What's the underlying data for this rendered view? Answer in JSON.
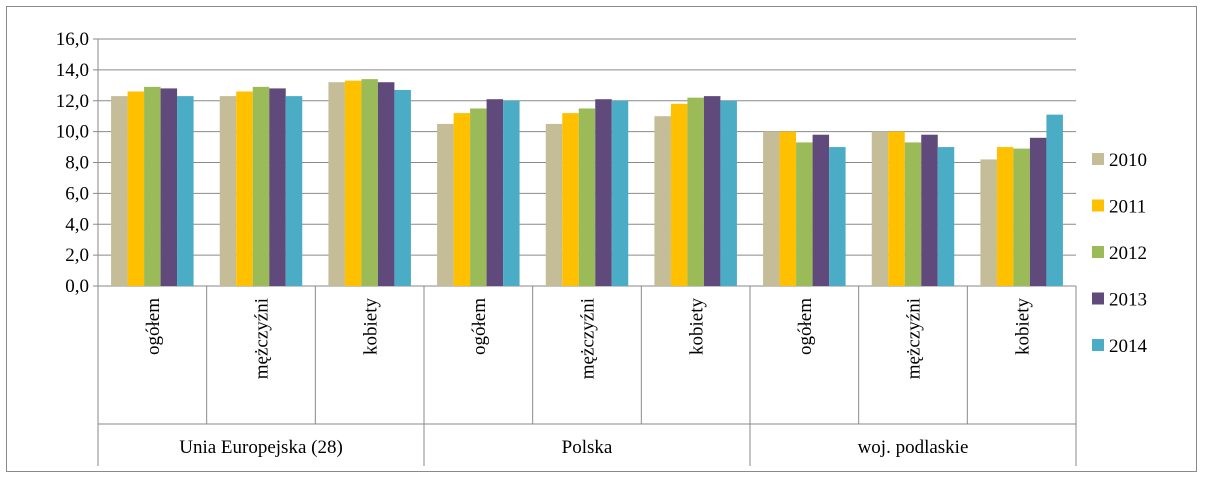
{
  "chart_data": {
    "type": "bar",
    "groups": [
      {
        "label": "Unia Europejska (28)",
        "categories": [
          "ogółem",
          "mężczyźni",
          "kobiety"
        ]
      },
      {
        "label": "Polska",
        "categories": [
          "ogółem",
          "mężczyźni",
          "kobiety"
        ]
      },
      {
        "label": "woj. podlaskie",
        "categories": [
          "ogółem",
          "mężczyźni",
          "kobiety"
        ]
      }
    ],
    "series": [
      {
        "name": "2010",
        "color": "#C4BD97",
        "values": [
          12.3,
          12.3,
          13.2,
          10.5,
          10.5,
          11.0,
          10.0,
          10.0,
          8.2
        ]
      },
      {
        "name": "2011",
        "color": "#FFC000",
        "values": [
          12.6,
          12.6,
          13.3,
          11.2,
          11.2,
          11.8,
          10.0,
          10.0,
          9.0
        ]
      },
      {
        "name": "2012",
        "color": "#9BBB59",
        "values": [
          12.9,
          12.9,
          13.4,
          11.5,
          11.5,
          12.2,
          9.3,
          9.3,
          8.9
        ]
      },
      {
        "name": "2013",
        "color": "#604A7B",
        "values": [
          12.8,
          12.8,
          13.2,
          12.1,
          12.1,
          12.3,
          9.8,
          9.8,
          9.6
        ]
      },
      {
        "name": "2014",
        "color": "#4BACC6",
        "values": [
          12.3,
          12.3,
          12.7,
          12.0,
          12.0,
          12.0,
          9.0,
          9.0,
          11.1
        ]
      }
    ],
    "ylim": [
      0,
      16
    ],
    "yticks": [
      "0,0",
      "2,0",
      "4,0",
      "6,0",
      "8,0",
      "10,0",
      "12,0",
      "14,0",
      "16,0"
    ],
    "grid": true,
    "legend_position": "right"
  }
}
